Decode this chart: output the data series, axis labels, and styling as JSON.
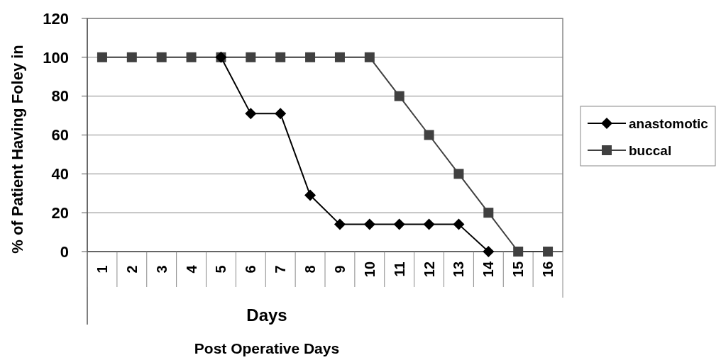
{
  "chart_data": {
    "type": "line",
    "xlabel": "Post Operative Days",
    "ylabel": "% of Patient Having Foley in",
    "annotations": [
      "Days"
    ],
    "categories": [
      "1",
      "2",
      "3",
      "4",
      "5",
      "6",
      "7",
      "8",
      "9",
      "10",
      "11",
      "12",
      "13",
      "14",
      "15",
      "16"
    ],
    "series": [
      {
        "name": "buccal",
        "color": "#404040",
        "marker": "square",
        "values": [
          100,
          100,
          100,
          100,
          100,
          100,
          100,
          100,
          100,
          100,
          80,
          60,
          40,
          20,
          0,
          0
        ]
      },
      {
        "name": "anastomotic",
        "color": "#000000",
        "marker": "diamond",
        "values": [
          null,
          null,
          null,
          null,
          100,
          71,
          71,
          29,
          14,
          14,
          14,
          14,
          14,
          0,
          null,
          null
        ]
      }
    ],
    "ylim": [
      0,
      120
    ],
    "yticks": [
      0,
      20,
      40,
      60,
      80,
      100,
      120
    ],
    "grid": "y",
    "legend": "right"
  }
}
